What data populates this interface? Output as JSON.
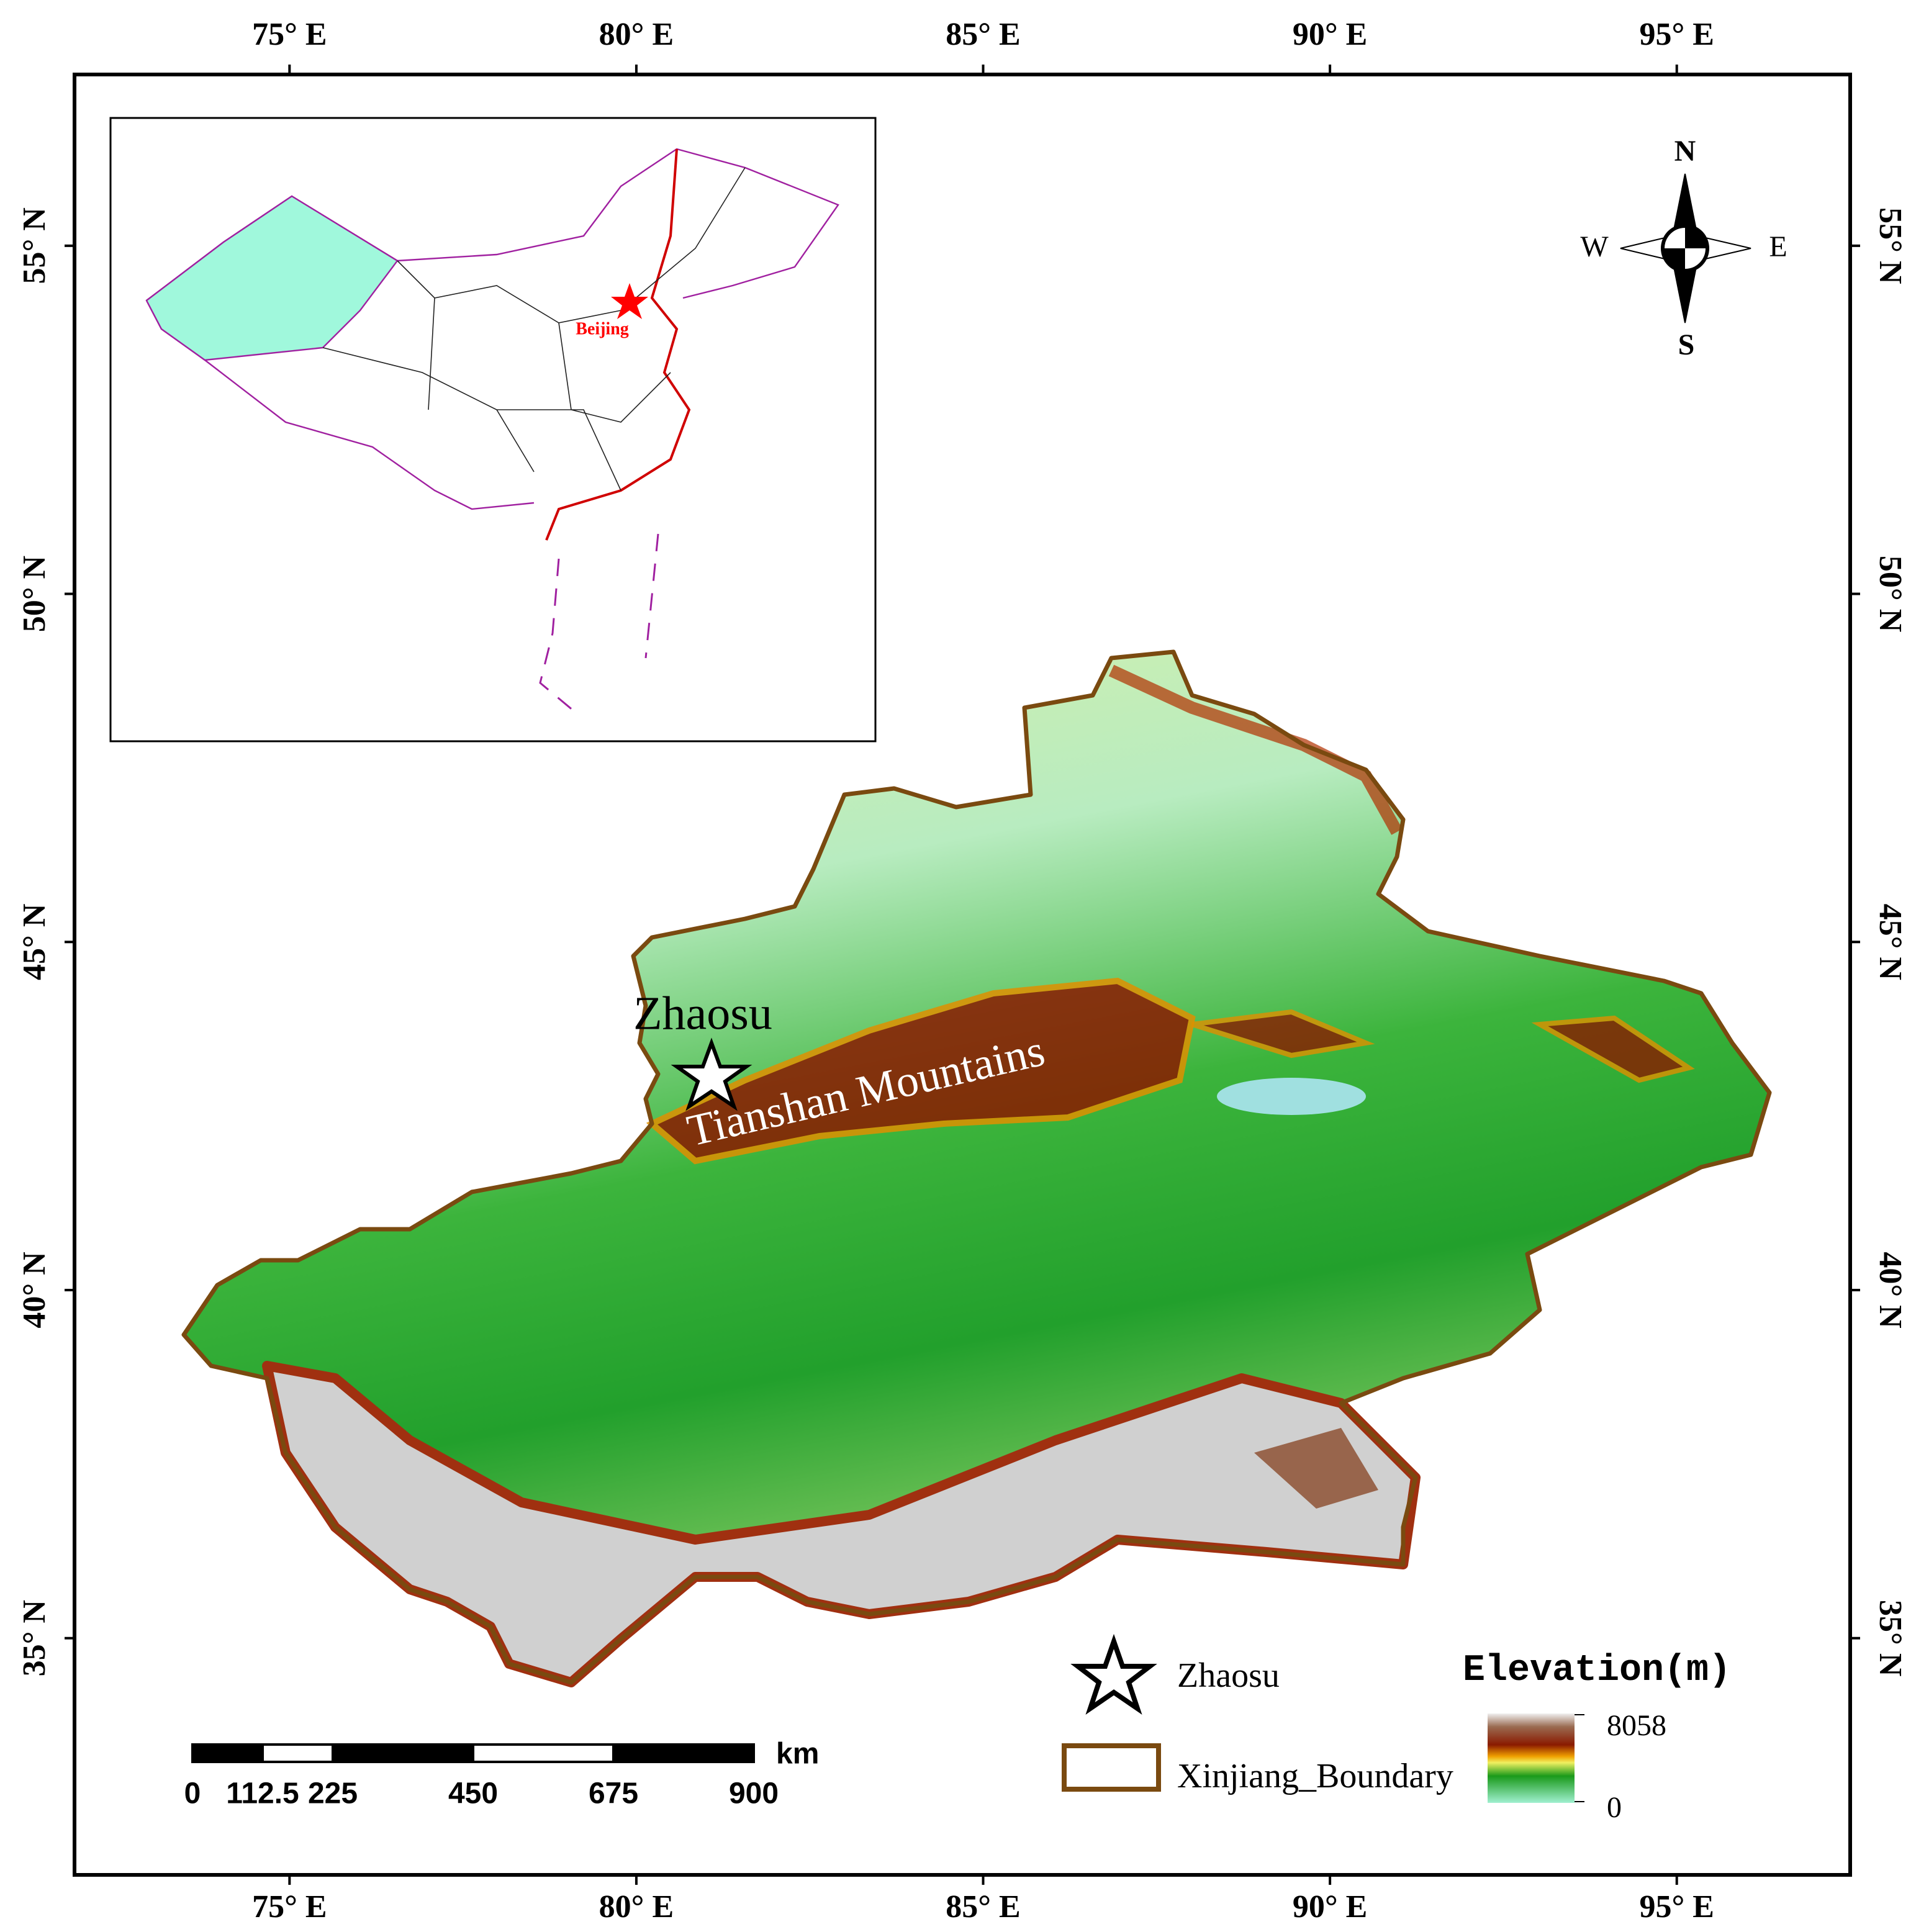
{
  "map": {
    "xlim": [
      71.9,
      97.5
    ],
    "ylim": [
      31.6,
      57.46
    ],
    "xticks": [
      {
        "value": 75,
        "label": "75° E"
      },
      {
        "value": 80,
        "label": "80° E"
      },
      {
        "value": 85,
        "label": "85° E"
      },
      {
        "value": 90,
        "label": "90° E"
      },
      {
        "value": 95,
        "label": "95° E"
      }
    ],
    "yticks": [
      {
        "value": 35,
        "label": "35° N"
      },
      {
        "value": 40,
        "label": "40° N"
      },
      {
        "value": 45,
        "label": "45° N"
      },
      {
        "value": 50,
        "label": "50° N"
      },
      {
        "value": 55,
        "label": "55° N"
      }
    ],
    "inset": {
      "place_label": "Beijing"
    },
    "compass": {
      "n": "N",
      "s": "S",
      "e": "E",
      "w": "W"
    },
    "labels": {
      "site": "Zhaosu",
      "mountains": "Tianshan Mountains"
    },
    "legend": {
      "site": "Zhaosu",
      "boundary": "Xinjiang_Boundary",
      "elevation_title": "Elevation(m)",
      "elevation_max": 8058,
      "elevation_min": 0
    },
    "scale_bar": {
      "unit": "km",
      "ticks": [
        0,
        112.5,
        225,
        450,
        675,
        900
      ]
    }
  }
}
